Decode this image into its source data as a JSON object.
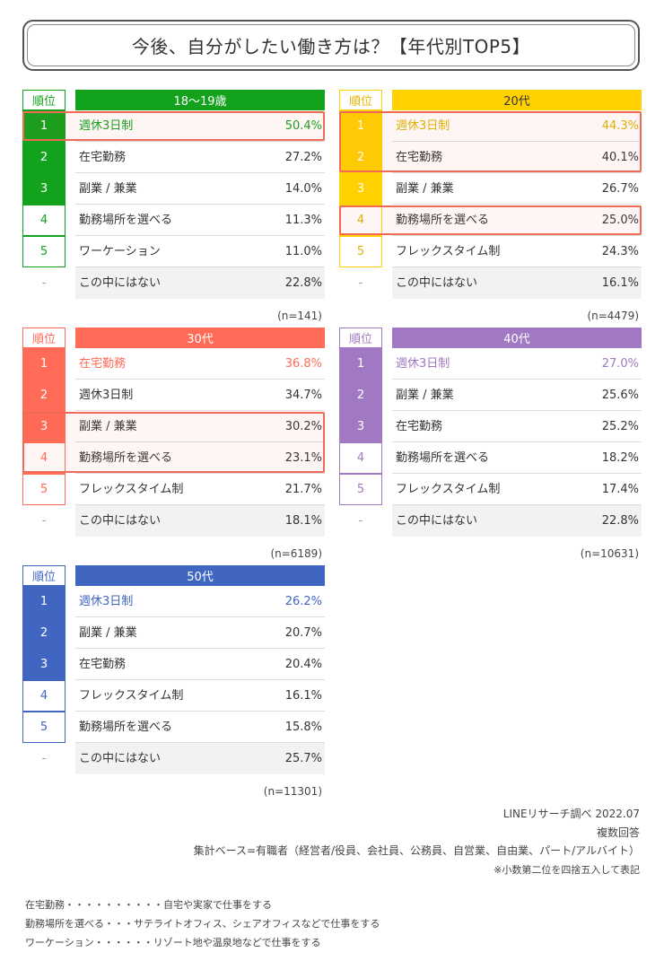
{
  "title": "今後、自分がしたい働き方は？【年代別TOP5】",
  "rank_header": "順位",
  "colors": {
    "g1819": "#12a21c",
    "g20": "#ffd100",
    "g30": "#ff6b57",
    "g40": "#a178c2",
    "g50": "#4066c2",
    "highlight": "#f06a55"
  },
  "chart_data": [
    {
      "type": "table",
      "group": "18〜19歳",
      "n": "(n=141)",
      "rows": [
        {
          "rank": "1",
          "label": "週休3日制",
          "value": "50.4%"
        },
        {
          "rank": "2",
          "label": "在宅勤務",
          "value": "27.2%"
        },
        {
          "rank": "3",
          "label": "副業 / 兼業",
          "value": "14.0%"
        },
        {
          "rank": "4",
          "label": "勤務場所を選べる",
          "value": "11.3%"
        },
        {
          "rank": "5",
          "label": "ワーケーション",
          "value": "11.0%"
        },
        {
          "rank": "-",
          "label": "この中にはない",
          "value": "22.8%"
        }
      ]
    },
    {
      "type": "table",
      "group": "20代",
      "n": "(n=4479)",
      "rows": [
        {
          "rank": "1",
          "label": "週休3日制",
          "value": "44.3%"
        },
        {
          "rank": "2",
          "label": "在宅勤務",
          "value": "40.1%"
        },
        {
          "rank": "3",
          "label": "副業 / 兼業",
          "value": "26.7%"
        },
        {
          "rank": "4",
          "label": "勤務場所を選べる",
          "value": "25.0%"
        },
        {
          "rank": "5",
          "label": "フレックスタイム制",
          "value": "24.3%"
        },
        {
          "rank": "-",
          "label": "この中にはない",
          "value": "16.1%"
        }
      ]
    },
    {
      "type": "table",
      "group": "30代",
      "n": "(n=6189)",
      "rows": [
        {
          "rank": "1",
          "label": "在宅勤務",
          "value": "36.8%"
        },
        {
          "rank": "2",
          "label": "週休3日制",
          "value": "34.7%"
        },
        {
          "rank": "3",
          "label": "副業 / 兼業",
          "value": "30.2%"
        },
        {
          "rank": "4",
          "label": "勤務場所を選べる",
          "value": "23.1%"
        },
        {
          "rank": "5",
          "label": "フレックスタイム制",
          "value": "21.7%"
        },
        {
          "rank": "-",
          "label": "この中にはない",
          "value": "18.1%"
        }
      ]
    },
    {
      "type": "table",
      "group": "40代",
      "n": "(n=10631)",
      "rows": [
        {
          "rank": "1",
          "label": "週休3日制",
          "value": "27.0%"
        },
        {
          "rank": "2",
          "label": "副業 / 兼業",
          "value": "25.6%"
        },
        {
          "rank": "3",
          "label": "在宅勤務",
          "value": "25.2%"
        },
        {
          "rank": "4",
          "label": "勤務場所を選べる",
          "value": "18.2%"
        },
        {
          "rank": "5",
          "label": "フレックスタイム制",
          "value": "17.4%"
        },
        {
          "rank": "-",
          "label": "この中にはない",
          "value": "22.8%"
        }
      ]
    },
    {
      "type": "table",
      "group": "50代",
      "n": "(n=11301)",
      "rows": [
        {
          "rank": "1",
          "label": "週休3日制",
          "value": "26.2%"
        },
        {
          "rank": "2",
          "label": "副業 / 兼業",
          "value": "20.7%"
        },
        {
          "rank": "3",
          "label": "在宅勤務",
          "value": "20.4%"
        },
        {
          "rank": "4",
          "label": "フレックスタイム制",
          "value": "16.1%"
        },
        {
          "rank": "5",
          "label": "勤務場所を選べる",
          "value": "15.8%"
        },
        {
          "rank": "-",
          "label": "この中にはない",
          "value": "25.7%"
        }
      ]
    }
  ],
  "highlighted_ranks": [
    [
      "1"
    ],
    [
      "1",
      "2",
      "4"
    ],
    [
      "3",
      "4"
    ],
    [],
    []
  ],
  "notes": {
    "source": "LINEリサーチ調べ 2022.07",
    "multiple": "複数回答",
    "base": "集計ベース=有職者（経営者/役員、会社員、公務員、自営業、自由業、パート/アルバイト）",
    "rounding": "※小数第二位を四捨五入して表記"
  },
  "definitions": [
    "在宅勤務・・・・・・・・・・自宅や実家で仕事をする",
    "勤務場所を選べる・・・サテライトオフィス、シェアオフィスなどで仕事をする",
    "ワーケーション・・・・・・リゾート地や温泉地などで仕事をする"
  ]
}
